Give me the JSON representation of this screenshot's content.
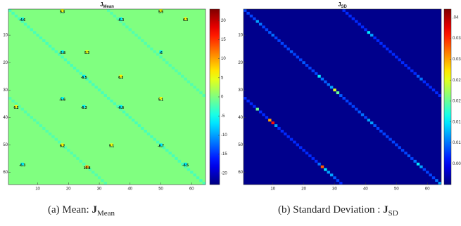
{
  "chart_data": [
    {
      "type": "heatmap",
      "title": "J",
      "title_sub": "Mean",
      "caption": "(a) Mean: ",
      "caption_symbol": "J",
      "caption_sub": "Mean",
      "xlim": [
        0.5,
        64.5
      ],
      "ylim": [
        0.5,
        64.5
      ],
      "y_reversed": true,
      "xticks": [
        10,
        20,
        30,
        40,
        50,
        60
      ],
      "yticks": [
        10,
        20,
        30,
        40,
        50,
        60
      ],
      "colormap": "jet",
      "clim": [
        -23,
        23
      ],
      "cticks": [
        -20,
        -15,
        -10,
        -5,
        0,
        5,
        10,
        15,
        20
      ],
      "background_value": 0,
      "cells": {
        "x": [
          1,
          2,
          3,
          4,
          5,
          6,
          7,
          8,
          9,
          10,
          11,
          12,
          13,
          14,
          15,
          16,
          17,
          18,
          19,
          20,
          21,
          22,
          23,
          24,
          25,
          26,
          27,
          28,
          29,
          30,
          31,
          32,
          33,
          34,
          35,
          36,
          37,
          38,
          39,
          40,
          41,
          42,
          43,
          44,
          45,
          46,
          47,
          48,
          49,
          50,
          51,
          52,
          53,
          54,
          55,
          56,
          57,
          58,
          59,
          60,
          61,
          62,
          63,
          64,
          33,
          34,
          35,
          36,
          37,
          38,
          39,
          40,
          41,
          42,
          43,
          44,
          45,
          46,
          47,
          48,
          49,
          50,
          51,
          52,
          53,
          54,
          55,
          56,
          57,
          58,
          59,
          60,
          61,
          62,
          63,
          64,
          1,
          2,
          3,
          4,
          5,
          6,
          7,
          8,
          9,
          10,
          11,
          12,
          13,
          14,
          15,
          16,
          17,
          18,
          19,
          20,
          21,
          22,
          23,
          24,
          25,
          26,
          27,
          28,
          29,
          30,
          31,
          32
        ],
        "y": [
          1,
          2,
          3,
          4,
          5,
          6,
          7,
          8,
          9,
          10,
          11,
          12,
          13,
          14,
          15,
          16,
          17,
          18,
          19,
          20,
          21,
          22,
          23,
          24,
          25,
          26,
          27,
          28,
          29,
          30,
          31,
          32,
          33,
          34,
          35,
          36,
          37,
          38,
          39,
          40,
          41,
          42,
          43,
          44,
          45,
          46,
          47,
          48,
          49,
          50,
          51,
          52,
          53,
          54,
          55,
          56,
          57,
          58,
          59,
          60,
          61,
          62,
          63,
          64,
          1,
          2,
          3,
          4,
          5,
          6,
          7,
          8,
          9,
          10,
          11,
          12,
          13,
          14,
          15,
          16,
          17,
          18,
          19,
          20,
          21,
          22,
          23,
          24,
          25,
          26,
          27,
          28,
          29,
          30,
          31,
          32,
          33,
          34,
          35,
          36,
          37,
          38,
          39,
          40,
          41,
          42,
          43,
          44,
          45,
          46,
          47,
          48,
          49,
          50,
          51,
          52,
          53,
          54,
          55,
          56,
          57,
          58,
          59,
          60,
          61,
          62,
          63,
          64
        ],
        "values": [
          -2.5,
          -2.5,
          -2.5,
          -2.5,
          -2.5,
          -2.5,
          -2.5,
          -2.5,
          -2.5,
          -2.5,
          -2.5,
          -2.5,
          -2.5,
          -2.5,
          -2.5,
          -2.5,
          -2.5,
          -2.5,
          -2.5,
          -2.5,
          -2.5,
          -2.5,
          -2.5,
          -2.5,
          -2.5,
          -2.5,
          -2.5,
          -2.5,
          -2.5,
          -2.5,
          -2.5,
          -2.5,
          -2.5,
          -2.5,
          -2.5,
          -2.5,
          -2.5,
          -2.5,
          -2.5,
          -2.5,
          -2.5,
          -2.5,
          -2.5,
          -2.5,
          -2.5,
          -2.5,
          -2.5,
          -2.5,
          -2.5,
          -2.5,
          -2.5,
          -2.5,
          -2.5,
          -2.5,
          -2.5,
          -2.5,
          -2.5,
          -2.5,
          -2.5,
          -2.5,
          -2.5,
          -2.5,
          -2.5,
          -2.5,
          -2,
          -2,
          -2,
          -2,
          -2,
          -2,
          -2,
          -2,
          -2,
          -2,
          -2,
          -2,
          -2,
          -2,
          -2,
          -2,
          -2,
          -2,
          -2,
          -2,
          -2,
          -2,
          -2,
          -2,
          -2,
          -2,
          -2,
          -2,
          -2,
          -2,
          -2,
          -2,
          -2,
          -2,
          -2,
          -2,
          -2,
          -2,
          -2,
          -2,
          -2,
          -2,
          -2,
          -2,
          -2,
          -2,
          -2,
          -2,
          -2,
          -2,
          -2,
          -2,
          -2,
          -2,
          -2,
          -2,
          -2,
          -2,
          -2,
          -2,
          -2,
          -2,
          -2,
          -2
        ]
      },
      "annotations": {
        "x": [
          5,
          18,
          50,
          37,
          58,
          18,
          26,
          50,
          25,
          37,
          18,
          50,
          25,
          37,
          3,
          18,
          34,
          50,
          5,
          58,
          26
        ],
        "y": [
          4,
          1,
          1,
          4,
          4,
          16,
          16,
          16,
          25,
          25,
          33,
          33,
          36,
          36,
          36,
          50,
          50,
          50,
          57,
          57,
          58
        ],
        "values": [
          -4.6,
          5.3,
          5.5,
          -6.3,
          6.3,
          -5.8,
          5.3,
          -6,
          -6.5,
          6.3,
          -5.6,
          5.1,
          -6.3,
          -6.6,
          6.2,
          6.2,
          5.1,
          -6.7,
          -6.3,
          -6.5,
          10.8
        ]
      }
    },
    {
      "type": "heatmap",
      "title": "J",
      "title_sub": "SD",
      "caption": "(b) Standard Deviation : ",
      "caption_symbol": "J",
      "caption_sub": "SD",
      "xlim": [
        0.5,
        64.5
      ],
      "ylim": [
        0.5,
        64.5
      ],
      "y_reversed": true,
      "xticks": [
        10,
        20,
        30,
        40,
        50,
        60
      ],
      "yticks": [
        10,
        20,
        30,
        40,
        50,
        60
      ],
      "colormap": "jet",
      "clim": [
        0,
        0.042
      ],
      "cticks": [
        {
          "value": 0.005,
          "label": "0.00"
        },
        {
          "value": 0.01,
          "label": "0.01"
        },
        {
          "value": 0.015,
          "label": "0.01"
        },
        {
          "value": 0.02,
          "label": "0.02"
        },
        {
          "value": 0.025,
          "label": "0.02"
        },
        {
          "value": 0.03,
          "label": "0.03"
        },
        {
          "value": 0.035,
          "label": "0.03"
        },
        {
          "value": 0.04,
          "label": ".04"
        }
      ],
      "background_value": 0.0005,
      "cells": {
        "x": [
          1,
          2,
          3,
          4,
          5,
          6,
          7,
          8,
          9,
          10,
          11,
          12,
          13,
          14,
          15,
          16,
          17,
          18,
          19,
          20,
          21,
          22,
          23,
          24,
          25,
          26,
          27,
          28,
          29,
          30,
          31,
          32,
          33,
          34,
          35,
          36,
          37,
          38,
          39,
          40,
          41,
          42,
          43,
          44,
          45,
          46,
          47,
          48,
          49,
          50,
          51,
          52,
          53,
          54,
          55,
          56,
          57,
          58,
          59,
          60,
          61,
          62,
          63,
          64,
          33,
          34,
          35,
          36,
          37,
          38,
          39,
          40,
          41,
          42,
          43,
          44,
          45,
          46,
          47,
          48,
          49,
          50,
          51,
          52,
          53,
          54,
          55,
          56,
          57,
          58,
          59,
          60,
          61,
          62,
          63,
          64,
          1,
          2,
          3,
          4,
          5,
          6,
          7,
          8,
          9,
          10,
          11,
          12,
          13,
          14,
          15,
          16,
          17,
          18,
          19,
          20,
          21,
          22,
          23,
          24,
          25,
          26,
          27,
          28,
          29,
          30,
          31,
          32
        ],
        "y": [
          1,
          2,
          3,
          4,
          5,
          6,
          7,
          8,
          9,
          10,
          11,
          12,
          13,
          14,
          15,
          16,
          17,
          18,
          19,
          20,
          21,
          22,
          23,
          24,
          25,
          26,
          27,
          28,
          29,
          30,
          31,
          32,
          33,
          34,
          35,
          36,
          37,
          38,
          39,
          40,
          41,
          42,
          43,
          44,
          45,
          46,
          47,
          48,
          49,
          50,
          51,
          52,
          53,
          54,
          55,
          56,
          57,
          58,
          59,
          60,
          61,
          62,
          63,
          64,
          1,
          2,
          3,
          4,
          5,
          6,
          7,
          8,
          9,
          10,
          11,
          12,
          13,
          14,
          15,
          16,
          17,
          18,
          19,
          20,
          21,
          22,
          23,
          24,
          25,
          26,
          27,
          28,
          29,
          30,
          31,
          32,
          33,
          34,
          35,
          36,
          37,
          38,
          39,
          40,
          41,
          42,
          43,
          44,
          45,
          46,
          47,
          48,
          49,
          50,
          51,
          52,
          53,
          54,
          55,
          56,
          57,
          58,
          59,
          60,
          61,
          62,
          63,
          64
        ],
        "values": [
          0.008,
          0.008,
          0.008,
          0.008,
          0.012,
          0.01,
          0.008,
          0.008,
          0.009,
          0.01,
          0.008,
          0.008,
          0.008,
          0.008,
          0.008,
          0.009,
          0.008,
          0.008,
          0.008,
          0.009,
          0.008,
          0.008,
          0.008,
          0.008,
          0.015,
          0.01,
          0.009,
          0.01,
          0.012,
          0.025,
          0.02,
          0.009,
          0.008,
          0.008,
          0.008,
          0.008,
          0.008,
          0.009,
          0.01,
          0.008,
          0.012,
          0.012,
          0.009,
          0.008,
          0.008,
          0.008,
          0.008,
          0.008,
          0.008,
          0.008,
          0.008,
          0.008,
          0.008,
          0.009,
          0.008,
          0.01,
          0.015,
          0.012,
          0.008,
          0.008,
          0.008,
          0.008,
          0.01,
          0.012,
          0.007,
          0.007,
          0.007,
          0.007,
          0.007,
          0.007,
          0.007,
          0.007,
          0.015,
          0.012,
          0.007,
          0.007,
          0.007,
          0.007,
          0.007,
          0.007,
          0.007,
          0.007,
          0.007,
          0.007,
          0.007,
          0.007,
          0.007,
          0.007,
          0.009,
          0.01,
          0.007,
          0.007,
          0.007,
          0.007,
          0.007,
          0.007,
          0.007,
          0.007,
          0.007,
          0.007,
          0.02,
          0.007,
          0.007,
          0.007,
          0.03,
          0.036,
          0.012,
          0.007,
          0.007,
          0.007,
          0.007,
          0.007,
          0.007,
          0.007,
          0.007,
          0.007,
          0.007,
          0.007,
          0.007,
          0.007,
          0.01,
          0.033,
          0.015,
          0.012,
          0.012,
          0.009,
          0.008,
          0.007
        ]
      }
    }
  ]
}
